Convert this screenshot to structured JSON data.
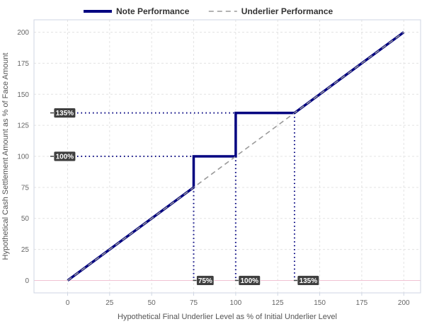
{
  "chart_data": {
    "type": "line",
    "xlabel": "Hypothetical Final Underlier Level as % of Initial Underlier Level",
    "ylabel": "Hypothetical Cash Settlement Amount as % of Face Amount",
    "xlim": [
      -20,
      210
    ],
    "ylim": [
      -10,
      210
    ],
    "x_ticks": [
      0,
      25,
      50,
      75,
      100,
      125,
      150,
      175,
      200
    ],
    "y_ticks": [
      0,
      25,
      50,
      75,
      100,
      125,
      150,
      175,
      200
    ],
    "grid": true,
    "legend_position": "top-center",
    "series": [
      {
        "name": "Note Performance",
        "color": "#000080",
        "style": "solid",
        "x": [
          0,
          75,
          75,
          100,
          100,
          135,
          200
        ],
        "y": [
          0,
          75,
          100,
          100,
          135,
          135,
          200
        ]
      },
      {
        "name": "Underlier Performance",
        "color": "#9a9a9a",
        "style": "dashed",
        "x": [
          0,
          200
        ],
        "y": [
          0,
          200
        ]
      }
    ],
    "y_callouts": [
      {
        "label": "135%",
        "value": 135,
        "x_end": 135
      },
      {
        "label": "100%",
        "value": 100,
        "x_end": 75
      }
    ],
    "x_callouts": [
      {
        "label": "75%",
        "value": 75,
        "y_end": 75
      },
      {
        "label": "100%",
        "value": 100,
        "y_end": 100
      },
      {
        "label": "135%",
        "value": 135,
        "y_end": 135
      }
    ]
  }
}
